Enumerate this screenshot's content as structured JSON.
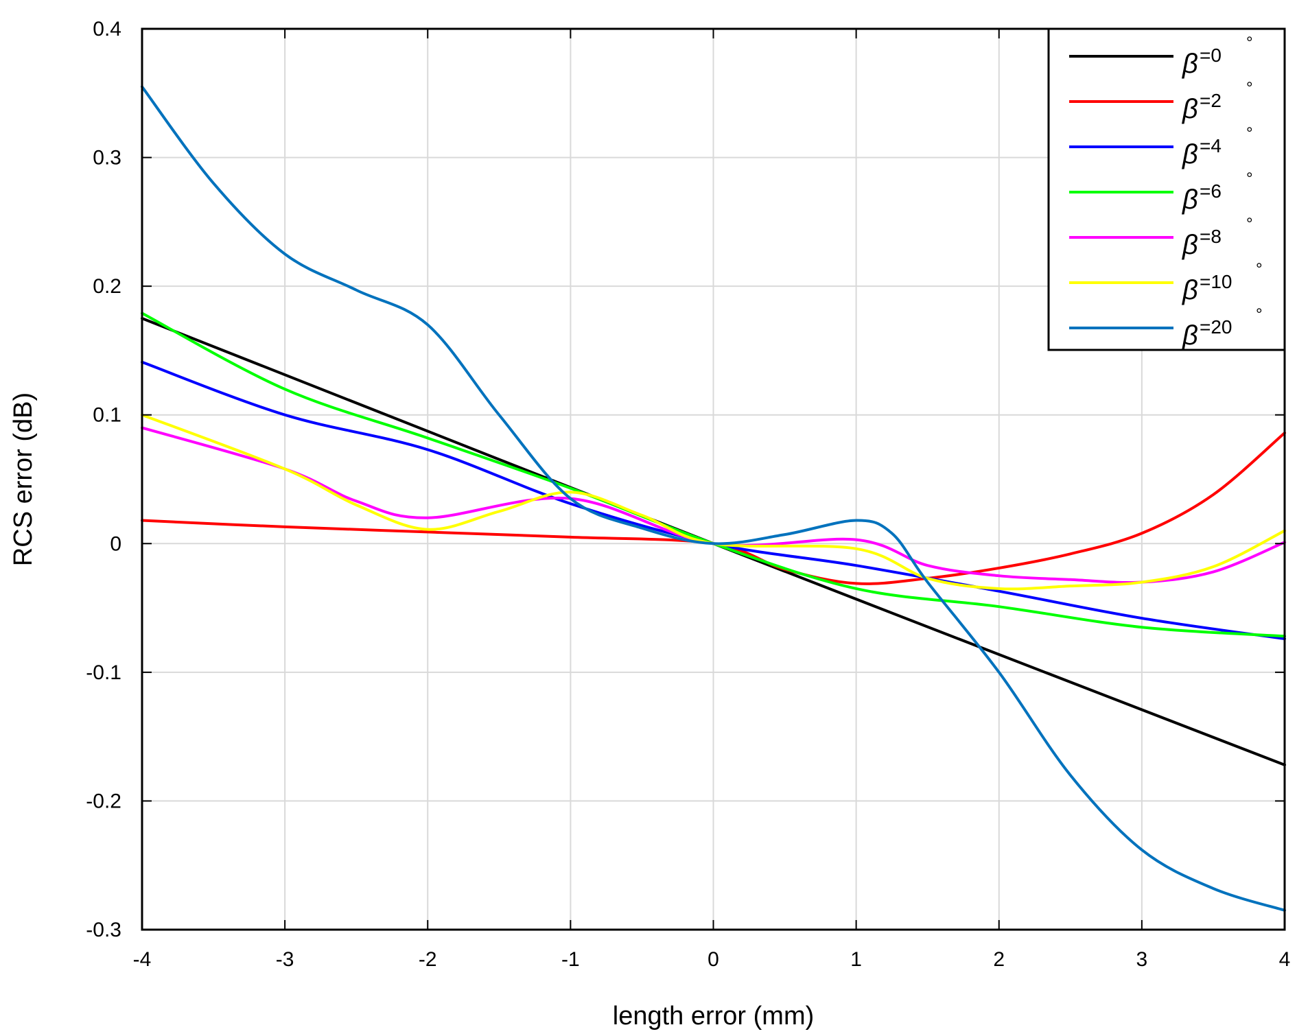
{
  "chart_data": {
    "type": "line",
    "title": "",
    "xlabel": "length error (mm)",
    "ylabel": "RCS error (dB)",
    "xlim": [
      -4,
      4
    ],
    "ylim": [
      -0.3,
      0.4
    ],
    "xticks": [
      -4,
      -3,
      -2,
      -1,
      0,
      1,
      2,
      3,
      4
    ],
    "xtick_labels": [
      "-4",
      "-3",
      "-2",
      "-1",
      "0",
      "1",
      "2",
      "3",
      "4"
    ],
    "yticks": [
      -0.3,
      -0.2,
      -0.1,
      0,
      0.1,
      0.2,
      0.3,
      0.4
    ],
    "ytick_labels": [
      "-0.3",
      "-0.2",
      "-0.1",
      "0",
      "0.1",
      "0.2",
      "0.3",
      "0.4"
    ],
    "grid": true,
    "legend_position": "top-right",
    "series": [
      {
        "name": "β=0°",
        "symbol": "β",
        "value_label": "=0",
        "degree": "°",
        "color": "#000000",
        "x": [
          -4,
          0,
          4
        ],
        "y": [
          0.175,
          0,
          -0.172
        ]
      },
      {
        "name": "β=2°",
        "symbol": "β",
        "value_label": "=2",
        "degree": "°",
        "color": "#ff0000",
        "x": [
          -4,
          -3,
          -2,
          -1,
          0,
          0.5,
          1,
          1.5,
          2,
          2.5,
          3,
          3.5,
          4
        ],
        "y": [
          0.018,
          0.013,
          0.009,
          0.005,
          0,
          -0.02,
          -0.031,
          -0.027,
          -0.019,
          -0.008,
          0.008,
          0.038,
          0.086
        ]
      },
      {
        "name": "β=4°",
        "symbol": "β",
        "value_label": "=4",
        "degree": "°",
        "color": "#0000ff",
        "x": [
          -4,
          -3,
          -2,
          -1,
          0,
          1,
          2,
          3,
          4
        ],
        "y": [
          0.141,
          0.1,
          0.073,
          0.031,
          0,
          -0.017,
          -0.037,
          -0.058,
          -0.074
        ]
      },
      {
        "name": "β=6°",
        "symbol": "β",
        "value_label": "=6",
        "degree": "°",
        "color": "#00ff00",
        "x": [
          -4,
          -3,
          -2,
          -1,
          0,
          1,
          2,
          3,
          4
        ],
        "y": [
          0.179,
          0.12,
          0.082,
          0.043,
          0,
          -0.035,
          -0.049,
          -0.065,
          -0.072
        ]
      },
      {
        "name": "β=8°",
        "symbol": "β",
        "value_label": "=8",
        "degree": "°",
        "color": "#ff00ff",
        "x": [
          -4,
          -3,
          -2.5,
          -2,
          -1,
          0,
          1,
          1.5,
          2,
          2.5,
          3,
          3.5,
          4
        ],
        "y": [
          0.09,
          0.058,
          0.033,
          0.02,
          0.035,
          0,
          0.003,
          -0.017,
          -0.025,
          -0.028,
          -0.03,
          -0.022,
          0.001
        ]
      },
      {
        "name": "β=10°",
        "symbol": "β",
        "value_label": "=10",
        "degree": "°",
        "color": "#ffff00",
        "x": [
          -4,
          -3,
          -2.5,
          -2,
          -1.5,
          -1,
          -0.5,
          0,
          1,
          1.5,
          2,
          2.5,
          3,
          3.5,
          4
        ],
        "y": [
          0.1,
          0.058,
          0.03,
          0.011,
          0.025,
          0.04,
          0.022,
          0,
          -0.004,
          -0.027,
          -0.035,
          -0.033,
          -0.03,
          -0.018,
          0.01
        ]
      },
      {
        "name": "β=20°",
        "symbol": "β",
        "value_label": "=20",
        "degree": "°",
        "color": "#0072bd",
        "x": [
          -4,
          -3.5,
          -3,
          -2.5,
          -2,
          -1.5,
          -1,
          -0.5,
          0,
          0.5,
          1,
          1.25,
          1.5,
          2,
          2.5,
          3,
          3.5,
          4
        ],
        "y": [
          0.355,
          0.28,
          0.225,
          0.197,
          0.17,
          0.1,
          0.035,
          0.012,
          0,
          0.007,
          0.018,
          0.008,
          -0.03,
          -0.1,
          -0.18,
          -0.238,
          -0.268,
          -0.285
        ]
      }
    ]
  }
}
